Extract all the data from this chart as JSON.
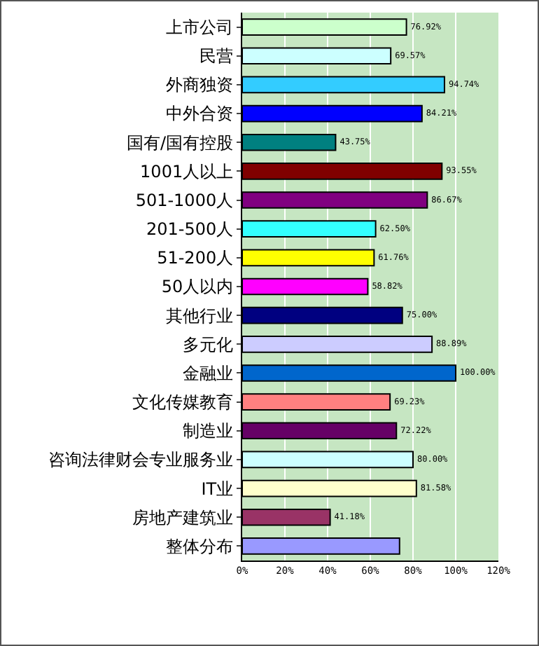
{
  "chart_data": {
    "type": "bar",
    "orientation": "horizontal",
    "categories": [
      "上市公司",
      "民营",
      "外商独资",
      "中外合资",
      "国有/国有控股",
      "1001人以上",
      "501-1000人",
      "201-500人",
      "51-200人",
      "50人以内",
      "其他行业",
      "多元化",
      "金融业",
      "文化传媒教育",
      "制造业",
      "咨询法律财会专业服务业",
      "IT业",
      "房地产建筑业",
      "整体分布"
    ],
    "values": [
      76.92,
      69.57,
      94.74,
      84.21,
      43.75,
      93.55,
      86.67,
      62.5,
      61.76,
      58.82,
      75,
      88.89,
      100,
      69.23,
      72.22,
      80,
      81.58,
      41.18,
      73.7
    ],
    "colors": [
      "#ccffcc",
      "#ccffff",
      "#33ccff",
      "#0000ff",
      "#008080",
      "#800000",
      "#800080",
      "#33ffff",
      "#ffff00",
      "#ff00ff",
      "#000080",
      "#ccccff",
      "#0066cc",
      "#ff8080",
      "#660066",
      "#ccffff",
      "#ffffcc",
      "#993366",
      "#9999ff"
    ],
    "value_labels": [
      "76.92%",
      "69.57%",
      "94.74%",
      "84.21%",
      "43.75%",
      "93.55%",
      "86.67%",
      "62.50%",
      "61.76%",
      "58.82%",
      "75.00%",
      "88.89%",
      "100.00%",
      "69.23%",
      "72.22%",
      "80.00%",
      "81.58%",
      "41.18%",
      null
    ],
    "xlim": [
      0,
      120
    ],
    "xticks": [
      {
        "value": 0,
        "label": "0%"
      },
      {
        "value": 20,
        "label": "20%"
      },
      {
        "value": 40,
        "label": "40%"
      },
      {
        "value": 60,
        "label": "60%"
      },
      {
        "value": 80,
        "label": "80%"
      },
      {
        "value": 100,
        "label": "100%"
      },
      {
        "value": 120,
        "label": "120%"
      }
    ],
    "grid": "x"
  }
}
